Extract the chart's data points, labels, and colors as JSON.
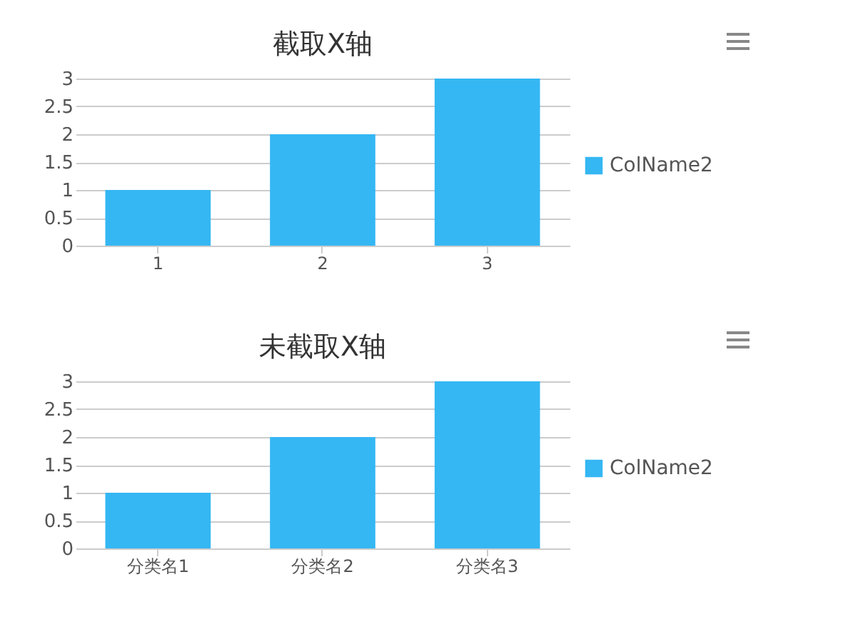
{
  "chart_data": [
    {
      "type": "bar",
      "title": "截取X轴",
      "categories": [
        "1",
        "2",
        "3"
      ],
      "series": [
        {
          "name": "ColName2",
          "color": "#35b7f3",
          "values": [
            1,
            2,
            3
          ]
        }
      ],
      "ylim": [
        0,
        3
      ],
      "yticks": [
        0,
        0.5,
        1,
        1.5,
        2,
        2.5,
        3
      ],
      "grid": "y",
      "legend": "right"
    },
    {
      "type": "bar",
      "title": "未截取X轴",
      "categories": [
        "分类名1",
        "分类名2",
        "分类名3"
      ],
      "series": [
        {
          "name": "ColName2",
          "color": "#35b7f3",
          "values": [
            1,
            2,
            3
          ]
        }
      ],
      "ylim": [
        0,
        3
      ],
      "yticks": [
        0,
        0.5,
        1,
        1.5,
        2,
        2.5,
        3
      ],
      "grid": "y",
      "legend": "right"
    }
  ]
}
